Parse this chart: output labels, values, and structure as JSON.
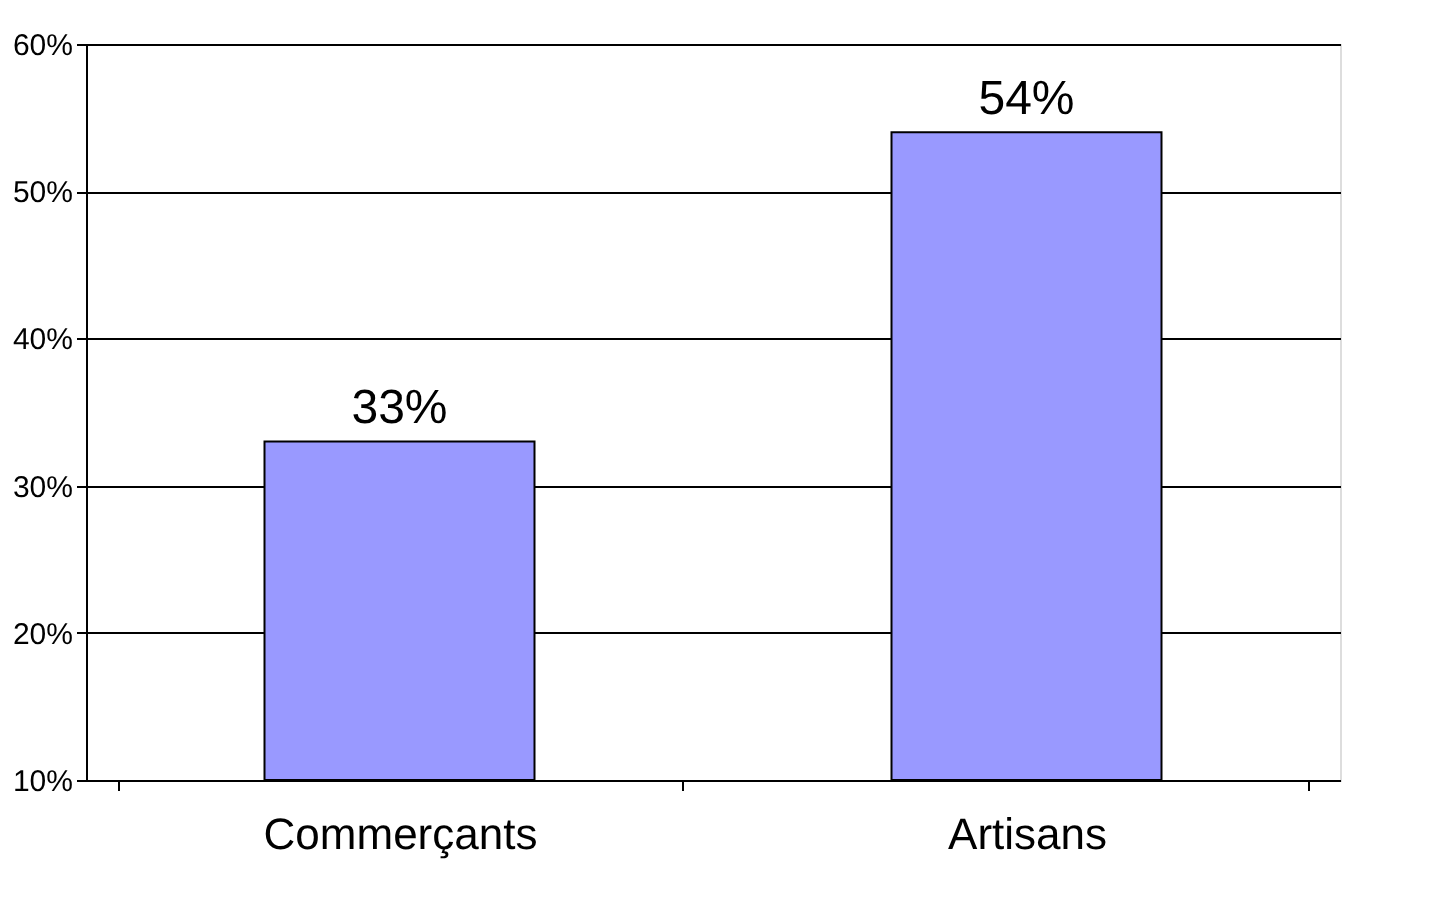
{
  "chart_data": {
    "type": "bar",
    "categories": [
      "Commerçants",
      "Artisans"
    ],
    "values": [
      33,
      54
    ],
    "color": "#9999ff",
    "value_labels": [
      "33%",
      "54%"
    ],
    "ylim": [
      10,
      60
    ],
    "yticks": [
      {
        "value": 10,
        "label": "10%"
      },
      {
        "value": 20,
        "label": "20%"
      },
      {
        "value": 30,
        "label": "30%"
      },
      {
        "value": 40,
        "label": "40%"
      },
      {
        "value": 50,
        "label": "50%"
      },
      {
        "value": 60,
        "label": "60%"
      }
    ],
    "grid": "y"
  }
}
